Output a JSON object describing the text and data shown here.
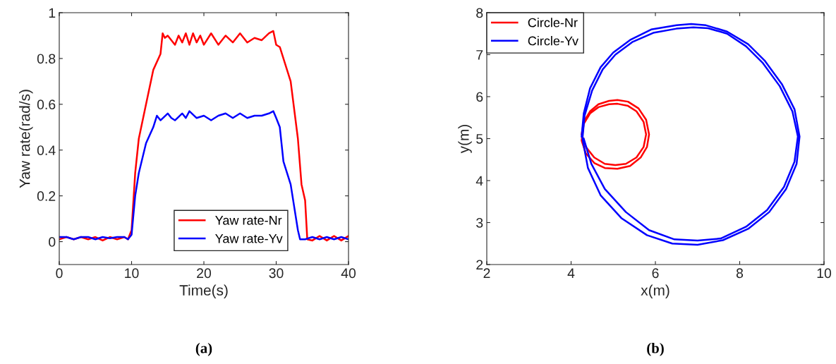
{
  "chart_data": [
    {
      "type": "line",
      "xlabel": "Time(s)",
      "ylabel": "Yaw rate(rad/s)",
      "annotations": [
        "(a)"
      ],
      "xlim": [
        0,
        40
      ],
      "ylim": [
        -0.1,
        1
      ],
      "xticks": [
        0,
        10,
        20,
        30,
        40
      ],
      "yticks": [
        0,
        0.2,
        0.4,
        0.6,
        0.8,
        1
      ],
      "legend": "bottom right",
      "grid": false,
      "series": [
        {
          "name": "Yaw rate-Nr",
          "color": "#ff0000",
          "x": [
            0,
            1,
            2,
            3,
            4,
            5,
            6,
            7,
            8,
            9,
            9.5,
            10,
            10.5,
            11,
            12,
            13,
            14,
            14.3,
            14.6,
            15,
            15.5,
            16,
            16.5,
            17,
            17.5,
            18,
            18.5,
            19,
            19.5,
            20,
            21,
            22,
            23,
            24,
            25,
            26,
            27,
            28,
            29,
            29.6,
            30,
            30.5,
            31,
            32,
            33,
            33.5,
            34,
            34.3,
            35,
            36,
            37,
            38,
            39,
            40
          ],
          "values": [
            0.01,
            0.02,
            0.01,
            0.02,
            0.01,
            0.02,
            0.005,
            0.02,
            0.01,
            0.02,
            0.01,
            0.05,
            0.3,
            0.45,
            0.6,
            0.75,
            0.82,
            0.91,
            0.89,
            0.9,
            0.88,
            0.86,
            0.9,
            0.87,
            0.91,
            0.86,
            0.91,
            0.87,
            0.9,
            0.86,
            0.91,
            0.86,
            0.9,
            0.87,
            0.91,
            0.87,
            0.89,
            0.88,
            0.91,
            0.92,
            0.86,
            0.85,
            0.8,
            0.7,
            0.45,
            0.25,
            0.18,
            0.01,
            0.005,
            0.025,
            0.005,
            0.025,
            0.005,
            0.025
          ]
        },
        {
          "name": "Yaw rate-Yv",
          "color": "#0000ff",
          "x": [
            0,
            1,
            2,
            3,
            4,
            5,
            6,
            7,
            8,
            9,
            9.5,
            10,
            10.5,
            11,
            12,
            13,
            13.5,
            14,
            15,
            15.5,
            16,
            17,
            17.5,
            18,
            19,
            20,
            21,
            22,
            23,
            24,
            25,
            26,
            27,
            28,
            29,
            29.6,
            30,
            30.5,
            31,
            32,
            32.5,
            33,
            33.3,
            34,
            35,
            36,
            37,
            38,
            39,
            40
          ],
          "values": [
            0.02,
            0.02,
            0.01,
            0.02,
            0.02,
            0.01,
            0.02,
            0.015,
            0.02,
            0.02,
            0.01,
            0.03,
            0.2,
            0.3,
            0.43,
            0.5,
            0.55,
            0.53,
            0.56,
            0.54,
            0.53,
            0.56,
            0.54,
            0.57,
            0.54,
            0.55,
            0.53,
            0.55,
            0.56,
            0.54,
            0.56,
            0.54,
            0.55,
            0.55,
            0.56,
            0.57,
            0.54,
            0.5,
            0.35,
            0.25,
            0.15,
            0.05,
            0.01,
            0.01,
            0.02,
            0.01,
            0.02,
            0.01,
            0.02,
            0.01
          ]
        }
      ]
    },
    {
      "type": "line",
      "xlabel": "x(m)",
      "ylabel": "y(m)",
      "annotations": [
        "(b)"
      ],
      "xlim": [
        2,
        10
      ],
      "ylim": [
        2,
        8
      ],
      "xticks": [
        2,
        4,
        6,
        8,
        10
      ],
      "yticks": [
        2,
        3,
        4,
        5,
        6,
        7,
        8
      ],
      "legend": "top left",
      "grid": false,
      "series": [
        {
          "name": "Circle-Nr",
          "color": "#ff0000",
          "x": [
            4.25,
            4.3,
            4.45,
            4.65,
            4.9,
            5.1,
            5.35,
            5.6,
            5.78,
            5.85,
            5.8,
            5.65,
            5.4,
            5.1,
            4.8,
            4.55,
            4.35,
            4.25,
            4.3,
            4.45,
            4.65,
            4.9,
            5.1,
            5.35,
            5.55,
            5.72,
            5.78,
            5.72,
            5.55,
            5.3,
            5.05,
            4.8,
            4.55,
            4.35,
            4.27
          ],
          "values": [
            5.1,
            5.4,
            5.65,
            5.82,
            5.9,
            5.92,
            5.88,
            5.72,
            5.45,
            5.1,
            4.8,
            4.55,
            4.35,
            4.28,
            4.3,
            4.42,
            4.65,
            4.95,
            5.35,
            5.6,
            5.75,
            5.82,
            5.83,
            5.78,
            5.65,
            5.4,
            5.1,
            4.8,
            4.55,
            4.4,
            4.37,
            4.4,
            4.55,
            4.8,
            5.05
          ]
        },
        {
          "name": "Circle-Yv",
          "color": "#0000ff",
          "x": [
            4.25,
            4.3,
            4.45,
            4.7,
            5.0,
            5.4,
            5.9,
            6.5,
            6.85,
            7.2,
            7.7,
            8.2,
            8.6,
            9.0,
            9.3,
            9.42,
            9.35,
            9.1,
            8.7,
            8.2,
            7.6,
            7.0,
            6.4,
            5.8,
            5.2,
            4.7,
            4.4,
            4.27,
            4.32,
            4.5,
            4.75,
            5.05,
            5.45,
            5.95,
            6.5,
            6.9,
            7.25,
            7.7,
            8.15,
            8.55,
            8.95,
            9.25,
            9.38,
            9.3,
            9.05,
            8.65,
            8.15,
            7.55,
            7.0,
            6.45,
            5.85,
            5.3,
            4.8,
            4.48,
            4.3
          ],
          "values": [
            5.05,
            5.6,
            6.2,
            6.7,
            7.05,
            7.35,
            7.6,
            7.7,
            7.73,
            7.7,
            7.55,
            7.25,
            6.85,
            6.3,
            5.7,
            5.05,
            4.4,
            3.8,
            3.25,
            2.85,
            2.58,
            2.47,
            2.5,
            2.7,
            3.1,
            3.65,
            4.3,
            5.0,
            5.55,
            6.15,
            6.65,
            7.0,
            7.3,
            7.52,
            7.62,
            7.65,
            7.63,
            7.5,
            7.2,
            6.8,
            6.25,
            5.65,
            5.05,
            4.45,
            3.85,
            3.3,
            2.9,
            2.62,
            2.57,
            2.6,
            2.82,
            3.25,
            3.8,
            4.4,
            5.0
          ]
        }
      ]
    }
  ]
}
